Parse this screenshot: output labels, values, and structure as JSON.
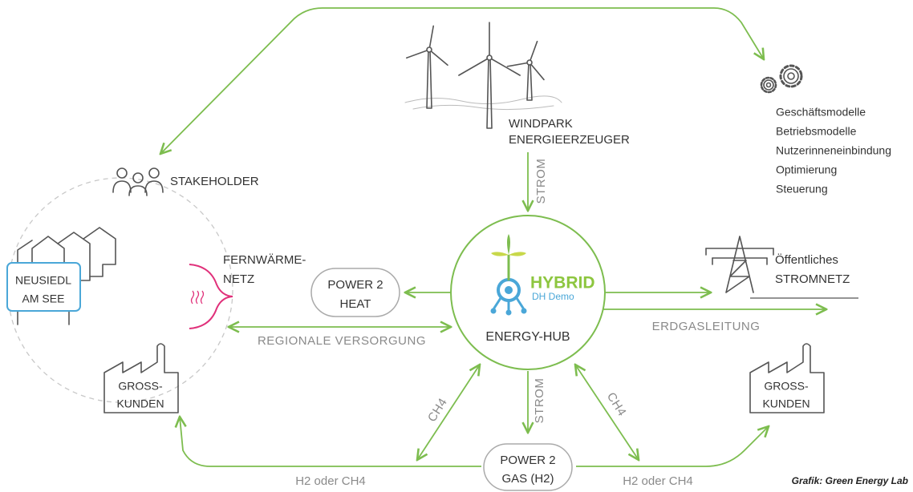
{
  "nodes": {
    "windpark": {
      "lines": [
        "WINDPARK",
        "ENERGIEERZEUGER"
      ]
    },
    "services": [
      "Geschäftsmodelle",
      "Betriebsmodelle",
      "Nutzerinneneinbindung",
      "Optimierung",
      "Steuerung"
    ],
    "stakeholder": "STAKEHOLDER",
    "public_grid": {
      "lines": [
        "Öffentliches",
        "STROMNETZ"
      ]
    },
    "district_heating": {
      "lines": [
        "FERNWÄRME-",
        "NETZ"
      ]
    },
    "power2heat": {
      "lines": [
        "POWER 2",
        "HEAT"
      ]
    },
    "hub": {
      "logo": "HYBRID",
      "logo_sub": "DH Demo",
      "label": "ENERGY-HUB"
    },
    "town": {
      "lines": [
        "NEUSIEDL",
        "AM SEE"
      ]
    },
    "customers_left": {
      "lines": [
        "GROSS-",
        "KUNDEN"
      ]
    },
    "customers_right": {
      "lines": [
        "GROSS-",
        "KUNDEN"
      ]
    },
    "power2gas": {
      "lines": [
        "POWER 2",
        "GAS (H2)"
      ]
    }
  },
  "flows": {
    "strom_top": "STROM",
    "regional": "REGIONALE VERSORGUNG",
    "gas_line": "ERDGASLEITUNG",
    "ch4_left": "CH4",
    "strom_bottom": "STROM",
    "ch4_right": "CH4",
    "h2_left": "H2 oder CH4",
    "h2_right": "H2 oder CH4"
  },
  "credit": "Grafik: Green Energy Lab"
}
